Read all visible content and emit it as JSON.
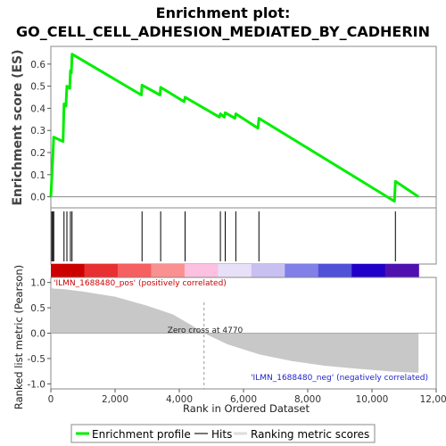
{
  "title_line1": "Enrichment plot:",
  "title_line2": "GO_CELL_CELL_ADHESION_MEDIATED_BY_CADHERIN",
  "colors": {
    "profile": "#00ee00",
    "hits": "#000000",
    "metric_fill": "#c8c8c8",
    "zero_line": "#888888",
    "pos_text": "#cc0000",
    "neg_text": "#2222cc",
    "heat_gradient": [
      "#cc0000",
      "#e83030",
      "#f66060",
      "#fa9090",
      "#fcc0e0",
      "#e8e0f8",
      "#c8c0f0",
      "#8080e8",
      "#5050d8",
      "#2000c8",
      "#5010b0"
    ]
  },
  "chart_data": [
    {
      "type": "line",
      "name": "enrichment-profile",
      "ylabel": "Enrichment score (ES)",
      "xlim": [
        0,
        12000
      ],
      "ylim": [
        -0.05,
        0.68
      ],
      "yticks": [
        0.0,
        0.1,
        0.2,
        0.3,
        0.4,
        0.5,
        0.6
      ],
      "ytick_labels": [
        "0.0",
        "0.1",
        "0.2",
        "0.3",
        "0.4",
        "0.5",
        "0.6"
      ],
      "grid": false,
      "points": [
        [
          0,
          0.0
        ],
        [
          30,
          0.09
        ],
        [
          60,
          0.18
        ],
        [
          90,
          0.27
        ],
        [
          380,
          0.25
        ],
        [
          410,
          0.42
        ],
        [
          470,
          0.41
        ],
        [
          500,
          0.5
        ],
        [
          590,
          0.49
        ],
        [
          610,
          0.57
        ],
        [
          640,
          0.56
        ],
        [
          660,
          0.645
        ],
        [
          2820,
          0.46
        ],
        [
          2840,
          0.505
        ],
        [
          3400,
          0.46
        ],
        [
          3420,
          0.495
        ],
        [
          4150,
          0.43
        ],
        [
          4180,
          0.45
        ],
        [
          5250,
          0.36
        ],
        [
          5280,
          0.375
        ],
        [
          5400,
          0.36
        ],
        [
          5430,
          0.38
        ],
        [
          5730,
          0.355
        ],
        [
          5760,
          0.375
        ],
        [
          6450,
          0.31
        ],
        [
          6480,
          0.355
        ],
        [
          10700,
          -0.02
        ],
        [
          10730,
          0.07
        ],
        [
          11450,
          0.0
        ]
      ]
    },
    {
      "type": "hits",
      "name": "gene-hits",
      "x": [
        30,
        60,
        90,
        410,
        500,
        610,
        660,
        2840,
        3420,
        4180,
        5280,
        5430,
        5760,
        6480,
        10730
      ]
    },
    {
      "type": "area",
      "name": "ranked-metric",
      "xlabel": "Rank in Ordered Dataset",
      "ylabel": "Ranked list metric (Pearson)",
      "xlim": [
        0,
        12000
      ],
      "ylim": [
        -1.1,
        1.1
      ],
      "yticks": [
        1.0,
        0.5,
        0.0,
        -0.5,
        -1.0
      ],
      "ytick_labels": [
        "1.0",
        "0.5",
        "0.0",
        "-0.5",
        "-1.0"
      ],
      "xticks": [
        0,
        2000,
        4000,
        6000,
        8000,
        10000,
        12000
      ],
      "xtick_labels": [
        "0",
        "2,000",
        "4,000",
        "6,000",
        "8,000",
        "10,000",
        "12,000"
      ],
      "points": [
        [
          0,
          0.95
        ],
        [
          50,
          0.88
        ],
        [
          400,
          0.87
        ],
        [
          1000,
          0.82
        ],
        [
          2000,
          0.72
        ],
        [
          3000,
          0.54
        ],
        [
          3800,
          0.37
        ],
        [
          4400,
          0.15
        ],
        [
          4770,
          0.0
        ],
        [
          5500,
          -0.22
        ],
        [
          6500,
          -0.42
        ],
        [
          7500,
          -0.55
        ],
        [
          8500,
          -0.64
        ],
        [
          9500,
          -0.7
        ],
        [
          10500,
          -0.75
        ],
        [
          11000,
          -0.77
        ],
        [
          11450,
          -0.78
        ]
      ],
      "zero_cross": 4770
    }
  ],
  "annotations": {
    "pos_label": "'ILMN_1688480_pos' (positively correlated)",
    "neg_label": "'ILMN_1688480_neg' (negatively correlated)",
    "zero_cross": "Zero cross at 4770"
  },
  "legend": {
    "profile": "Enrichment profile",
    "hits": "Hits",
    "metric": "Ranking metric scores"
  }
}
